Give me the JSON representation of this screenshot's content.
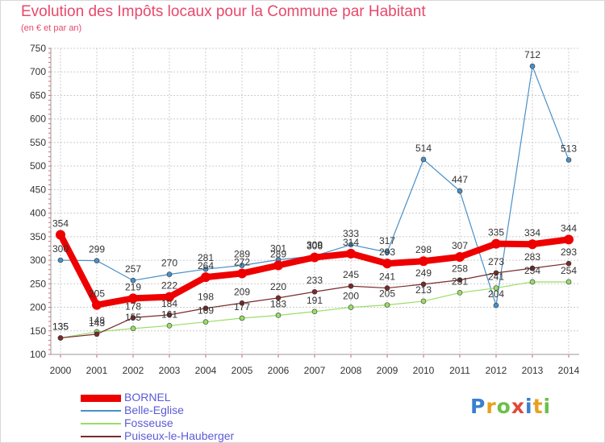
{
  "chart_data": {
    "type": "line",
    "title": "Evolution des Impôts locaux pour la Commune par Habitant",
    "subtitle": "(en € et par an)",
    "xlabel": "",
    "ylabel": "",
    "ylim": [
      100,
      750
    ],
    "yticks": [
      100,
      150,
      200,
      250,
      300,
      350,
      400,
      450,
      500,
      550,
      600,
      650,
      700,
      750
    ],
    "x": [
      "2000",
      "2001",
      "2002",
      "2003",
      "2004",
      "2005",
      "2006",
      "2007",
      "2008",
      "2009",
      "2010",
      "2011",
      "2012",
      "2013",
      "2014"
    ],
    "grid": true,
    "legend_position": "bottom-left",
    "series": [
      {
        "name": "BORNEL",
        "color": "#ee0000",
        "values": [
          354,
          205,
          219,
          222,
          264,
          272,
          289,
          306,
          314,
          293,
          298,
          307,
          335,
          334,
          344
        ]
      },
      {
        "name": "Belle-Eglise",
        "color": "#4a90c8",
        "values": [
          300,
          299,
          257,
          270,
          281,
          289,
          301,
          309,
          333,
          317,
          514,
          447,
          204,
          712,
          513
        ]
      },
      {
        "name": "Fosseuse",
        "color": "#99dd66",
        "values": [
          135,
          148,
          155,
          161,
          169,
          177,
          183,
          191,
          200,
          205,
          213,
          231,
          241,
          254,
          254
        ]
      },
      {
        "name": "Puiseux-le-Hauberger",
        "color": "#7a2a2a",
        "values": [
          135,
          143,
          178,
          184,
          198,
          209,
          220,
          233,
          245,
          241,
          249,
          258,
          273,
          283,
          293
        ]
      }
    ]
  },
  "logo": {
    "letters": [
      "P",
      "r",
      "o",
      "x",
      "i",
      "t",
      "i"
    ],
    "colors": [
      "#3a7fd0",
      "#e8a020",
      "#6cc04a",
      "#e0483a",
      "#3a7fd0",
      "#e8a020",
      "#6cc04a"
    ]
  }
}
